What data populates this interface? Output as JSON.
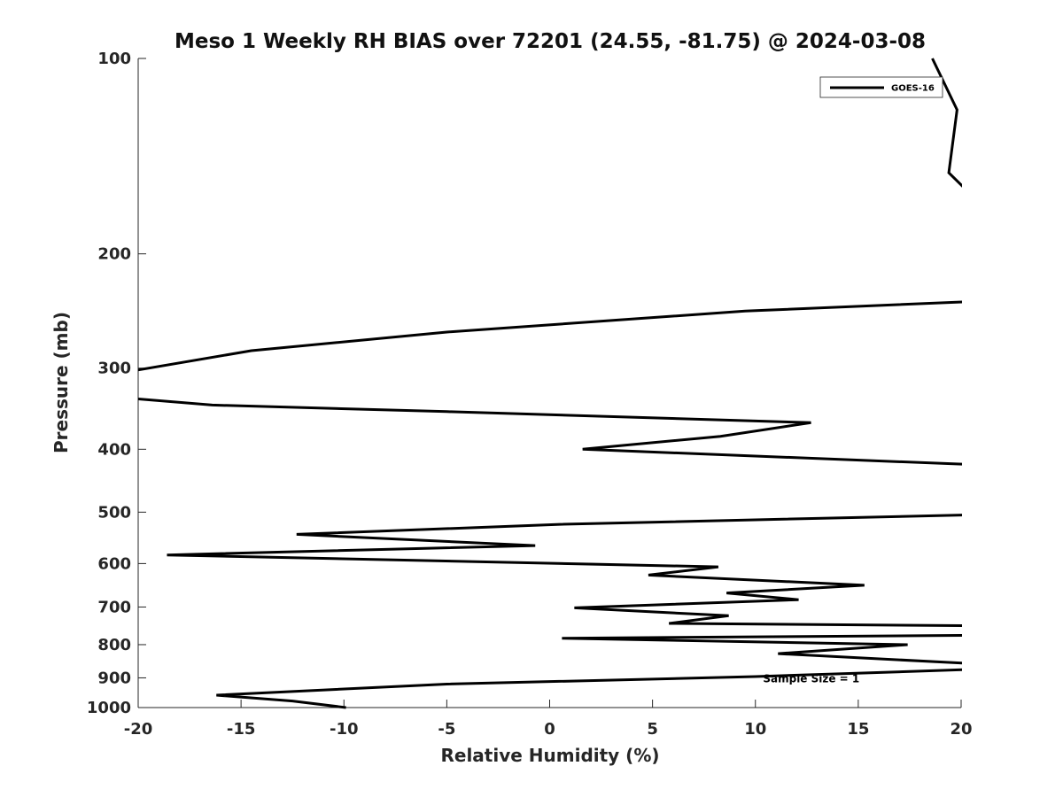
{
  "chart_data": {
    "type": "line",
    "title": "Meso 1 Weekly RH BIAS over 72201 (24.55, -81.75) @ 2024-03-08",
    "xlabel": "Relative Humidity (%)",
    "ylabel": "Pressure (mb)",
    "xlim": [
      -20,
      20
    ],
    "ylim": [
      100,
      1000
    ],
    "yscale": "log-reversed",
    "xticks": [
      -20,
      -15,
      -10,
      -5,
      0,
      5,
      10,
      15,
      20
    ],
    "xtick_labels": [
      "-20",
      "-15",
      "-10",
      "-5",
      "0",
      "5",
      "10",
      "15",
      "20"
    ],
    "yticks": [
      100,
      200,
      300,
      400,
      500,
      600,
      700,
      800,
      900,
      1000
    ],
    "ytick_labels": [
      "100",
      "200",
      "300",
      "400",
      "500",
      "600",
      "700",
      "800",
      "900",
      "1000"
    ],
    "grid": false,
    "legend_position": "top-right",
    "series": [
      {
        "name": "GOES-16",
        "color": "#000000",
        "points": [
          {
            "x": 18.6,
            "p": 100
          },
          {
            "x": 19.8,
            "p": 120
          },
          {
            "x": 19.4,
            "p": 150
          },
          {
            "x": 20.3,
            "p": 160
          },
          {
            "x": 20.3,
            "p": 237
          },
          {
            "x": 9.5,
            "p": 245
          },
          {
            "x": -5.0,
            "p": 264
          },
          {
            "x": -14.5,
            "p": 282
          },
          {
            "x": -20.3,
            "p": 303
          },
          {
            "x": -20.3,
            "p": 334
          },
          {
            "x": -16.4,
            "p": 342
          },
          {
            "x": -5.0,
            "p": 350
          },
          {
            "x": 12.7,
            "p": 364
          },
          {
            "x": 8.3,
            "p": 382
          },
          {
            "x": 1.6,
            "p": 400
          },
          {
            "x": 20.3,
            "p": 422
          },
          {
            "x": 20.3,
            "p": 505
          },
          {
            "x": 0.5,
            "p": 522
          },
          {
            "x": -12.3,
            "p": 541
          },
          {
            "x": -0.7,
            "p": 563
          },
          {
            "x": -18.6,
            "p": 582
          },
          {
            "x": 8.2,
            "p": 607
          },
          {
            "x": 4.8,
            "p": 625
          },
          {
            "x": 15.3,
            "p": 648
          },
          {
            "x": 8.6,
            "p": 666
          },
          {
            "x": 12.1,
            "p": 682
          },
          {
            "x": 1.2,
            "p": 702
          },
          {
            "x": 8.7,
            "p": 722
          },
          {
            "x": 5.8,
            "p": 742
          },
          {
            "x": 20.3,
            "p": 748
          },
          {
            "x": 20.3,
            "p": 774
          },
          {
            "x": 0.6,
            "p": 782
          },
          {
            "x": 17.4,
            "p": 800
          },
          {
            "x": 11.1,
            "p": 826
          },
          {
            "x": 20.3,
            "p": 855
          },
          {
            "x": 20.3,
            "p": 874
          },
          {
            "x": 10.0,
            "p": 896
          },
          {
            "x": -5.0,
            "p": 920
          },
          {
            "x": -16.2,
            "p": 957
          },
          {
            "x": -12.5,
            "p": 977
          },
          {
            "x": -9.9,
            "p": 1000
          }
        ]
      }
    ],
    "annotations": [
      {
        "text": "Sample Size = 1",
        "x": 12.5,
        "p": 900
      }
    ]
  }
}
